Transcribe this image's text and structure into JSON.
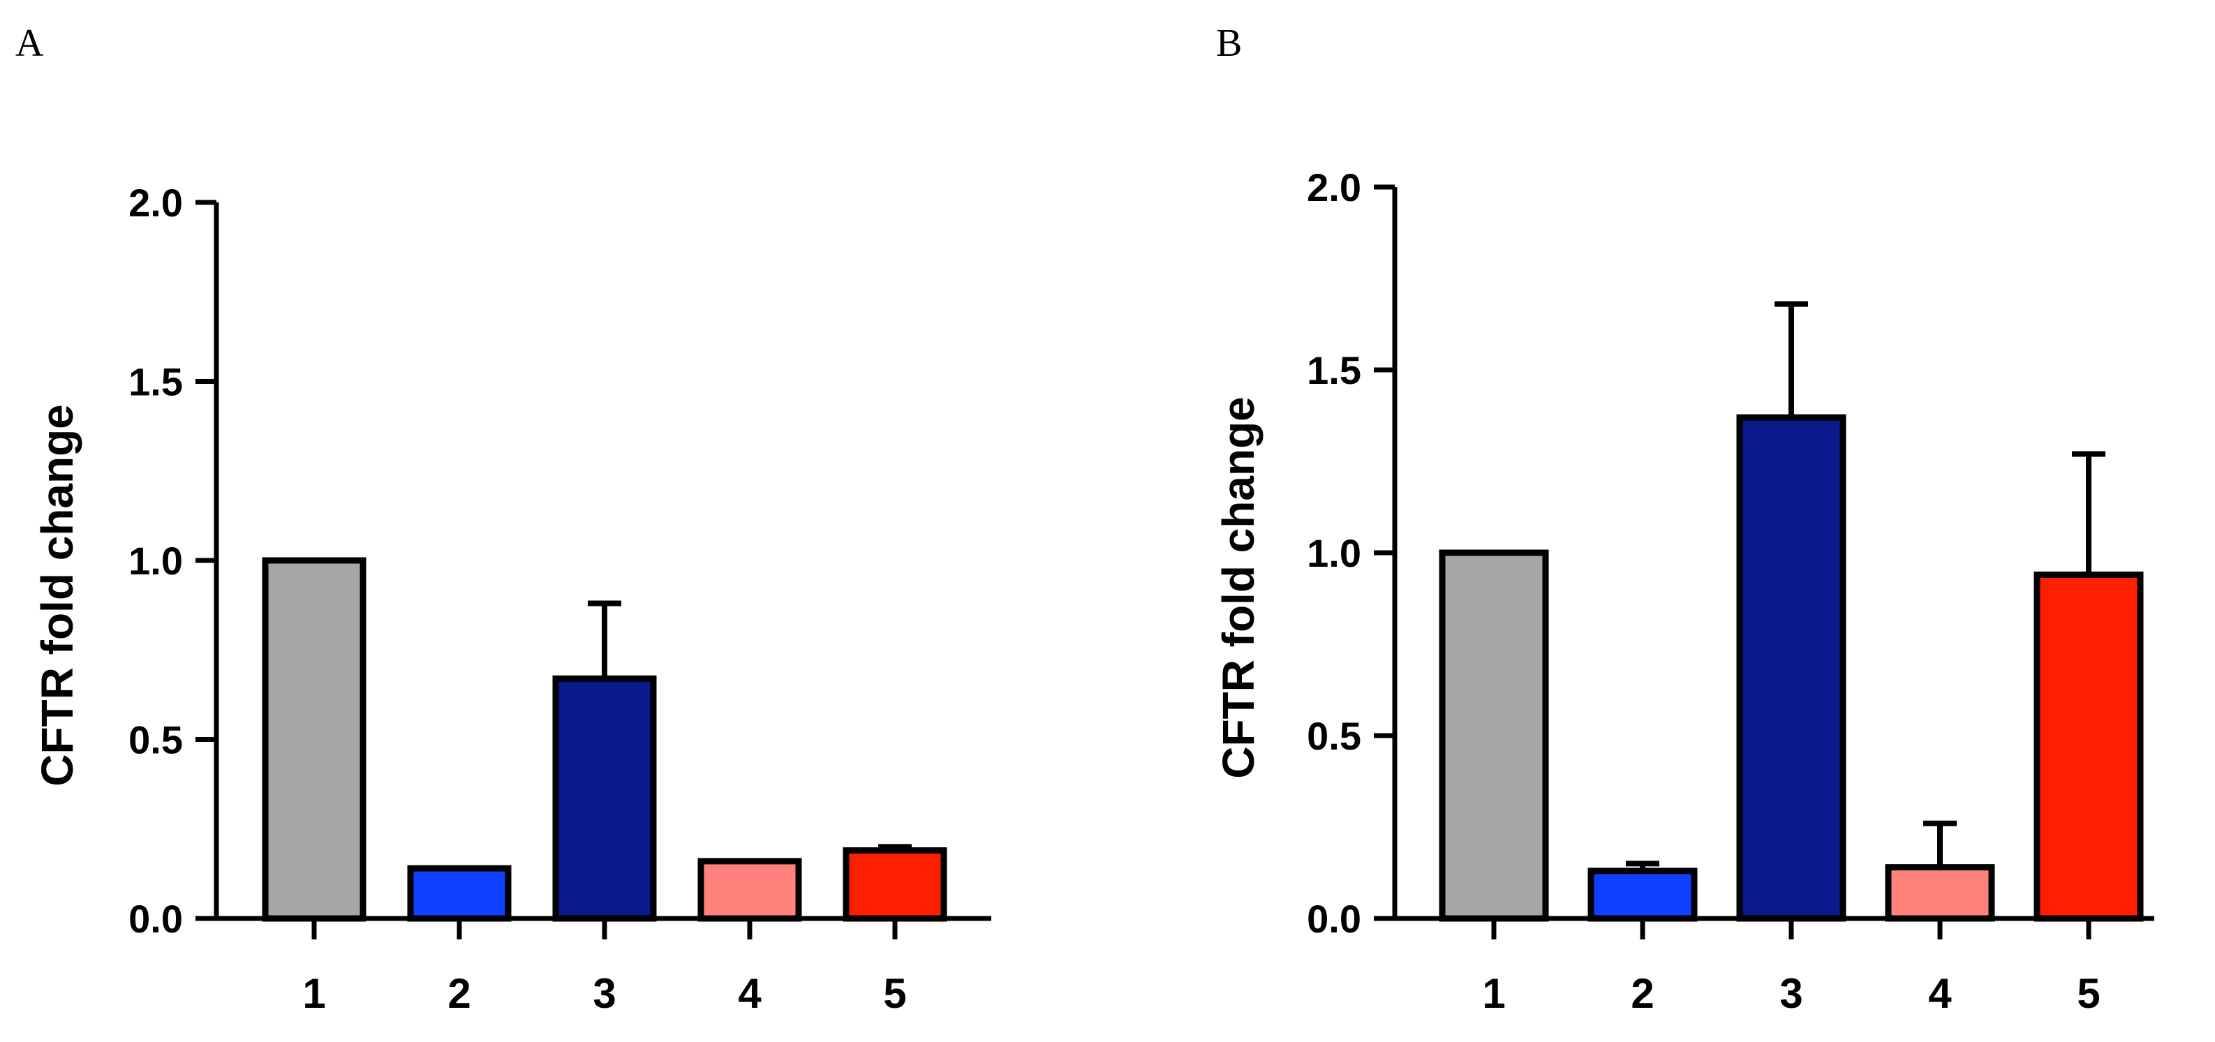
{
  "panels": [
    {
      "letter": "A"
    },
    {
      "letter": "B"
    }
  ],
  "chart_data": [
    {
      "type": "bar",
      "panel": "A",
      "categories": [
        "1",
        "2",
        "3",
        "4",
        "5"
      ],
      "values": [
        1.0,
        0.14,
        0.67,
        0.16,
        0.19
      ],
      "errors": [
        0.0,
        0.0,
        0.21,
        0.0,
        0.01
      ],
      "colors": [
        "#a6a8a6",
        "#0f3fff",
        "#0a1a8c",
        "#ff837c",
        "#ff1f00"
      ],
      "ylabel": "CFTR fold change",
      "xlabel": "",
      "ylim": [
        0,
        2.0
      ],
      "yticks": [
        "0.0",
        "0.5",
        "1.0",
        "1.5",
        "2.0"
      ],
      "grid": false
    },
    {
      "type": "bar",
      "panel": "B",
      "categories": [
        "1",
        "2",
        "3",
        "4",
        "5"
      ],
      "values": [
        1.0,
        0.13,
        1.37,
        0.14,
        0.94
      ],
      "errors": [
        0.0,
        0.02,
        0.31,
        0.12,
        0.33
      ],
      "colors": [
        "#a6a8a6",
        "#0f3fff",
        "#0a1a8c",
        "#ff837c",
        "#ff1f00"
      ],
      "ylabel": "CFTR fold change",
      "xlabel": "",
      "ylim": [
        0,
        2.0
      ],
      "yticks": [
        "0.0",
        "0.5",
        "1.0",
        "1.5",
        "2.0"
      ],
      "grid": false
    }
  ]
}
